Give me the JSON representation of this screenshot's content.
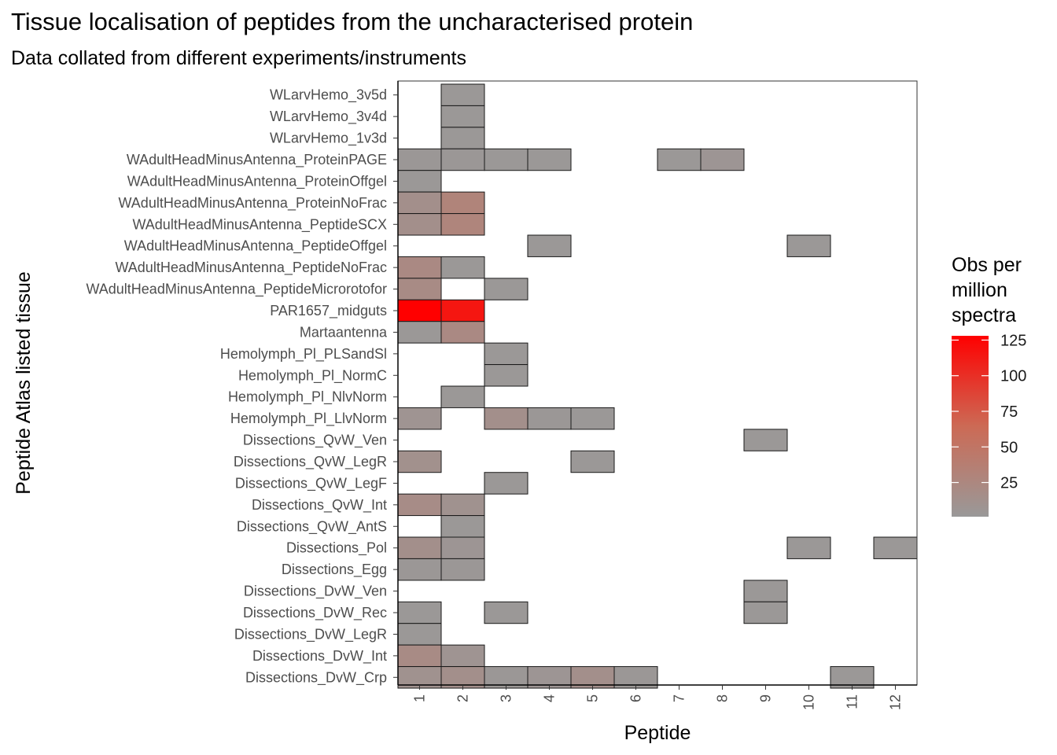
{
  "chart_data": {
    "type": "heatmap",
    "title": "Tissue localisation of peptides from the uncharacterised protein",
    "subtitle": "Data collated from different experiments/instruments",
    "xlabel": "Peptide",
    "ylabel": "Peptide Atlas listed tissue",
    "x": [
      "1",
      "2",
      "3",
      "4",
      "5",
      "6",
      "7",
      "8",
      "9",
      "10",
      "11",
      "12"
    ],
    "y": [
      "WLarvHemo_3v5d",
      "WLarvHemo_3v4d",
      "WLarvHemo_1v3d",
      "WAdultHeadMinusAntenna_ProteinPAGE",
      "WAdultHeadMinusAntenna_ProteinOffgel",
      "WAdultHeadMinusAntenna_ProteinNoFrac",
      "WAdultHeadMinusAntenna_PeptideSCX",
      "WAdultHeadMinusAntenna_PeptideOffgel",
      "WAdultHeadMinusAntenna_PeptideNoFrac",
      "WAdultHeadMinusAntenna_PeptideMicrorotofor",
      "PAR1657_midguts",
      "Martaantenna",
      "Hemolymph_Pl_PLSandSl",
      "Hemolymph_Pl_NormC",
      "Hemolymph_Pl_NlvNorm",
      "Hemolymph_Pl_LlvNorm",
      "Dissections_QvW_Ven",
      "Dissections_QvW_LegR",
      "Dissections_QvW_LegF",
      "Dissections_QvW_Int",
      "Dissections_QvW_AntS",
      "Dissections_Pol",
      "Dissections_Egg",
      "Dissections_DvW_Ven",
      "Dissections_DvW_Rec",
      "Dissections_DvW_LegR",
      "Dissections_DvW_Int",
      "Dissections_DvW_Crp"
    ],
    "cells": [
      {
        "y": "WLarvHemo_3v5d",
        "x": "2",
        "value": 3
      },
      {
        "y": "WLarvHemo_3v4d",
        "x": "2",
        "value": 3
      },
      {
        "y": "WLarvHemo_1v3d",
        "x": "2",
        "value": 3
      },
      {
        "y": "WAdultHeadMinusAntenna_ProteinPAGE",
        "x": "1",
        "value": 4
      },
      {
        "y": "WAdultHeadMinusAntenna_ProteinPAGE",
        "x": "2",
        "value": 4
      },
      {
        "y": "WAdultHeadMinusAntenna_ProteinPAGE",
        "x": "3",
        "value": 3
      },
      {
        "y": "WAdultHeadMinusAntenna_ProteinPAGE",
        "x": "4",
        "value": 3
      },
      {
        "y": "WAdultHeadMinusAntenna_ProteinPAGE",
        "x": "7",
        "value": 3
      },
      {
        "y": "WAdultHeadMinusAntenna_ProteinPAGE",
        "x": "8",
        "value": 6
      },
      {
        "y": "WAdultHeadMinusAntenna_ProteinOffgel",
        "x": "1",
        "value": 3
      },
      {
        "y": "WAdultHeadMinusAntenna_ProteinNoFrac",
        "x": "1",
        "value": 14
      },
      {
        "y": "WAdultHeadMinusAntenna_ProteinNoFrac",
        "x": "2",
        "value": 30
      },
      {
        "y": "WAdultHeadMinusAntenna_PeptideSCX",
        "x": "1",
        "value": 14
      },
      {
        "y": "WAdultHeadMinusAntenna_PeptideSCX",
        "x": "2",
        "value": 28
      },
      {
        "y": "WAdultHeadMinusAntenna_PeptideOffgel",
        "x": "4",
        "value": 3
      },
      {
        "y": "WAdultHeadMinusAntenna_PeptideOffgel",
        "x": "10",
        "value": 3
      },
      {
        "y": "WAdultHeadMinusAntenna_PeptideNoFrac",
        "x": "1",
        "value": 22
      },
      {
        "y": "WAdultHeadMinusAntenna_PeptideNoFrac",
        "x": "2",
        "value": 3
      },
      {
        "y": "WAdultHeadMinusAntenna_PeptideMicrorotofor",
        "x": "1",
        "value": 20
      },
      {
        "y": "WAdultHeadMinusAntenna_PeptideMicrorotofor",
        "x": "3",
        "value": 3
      },
      {
        "y": "PAR1657_midguts",
        "x": "1",
        "value": 128
      },
      {
        "y": "PAR1657_midguts",
        "x": "2",
        "value": 115
      },
      {
        "y": "Martaantenna",
        "x": "1",
        "value": 3
      },
      {
        "y": "Martaantenna",
        "x": "2",
        "value": 22
      },
      {
        "y": "Hemolymph_Pl_PLSandSl",
        "x": "3",
        "value": 3
      },
      {
        "y": "Hemolymph_Pl_NormC",
        "x": "3",
        "value": 3
      },
      {
        "y": "Hemolymph_Pl_NlvNorm",
        "x": "2",
        "value": 3
      },
      {
        "y": "Hemolymph_Pl_LlvNorm",
        "x": "1",
        "value": 8
      },
      {
        "y": "Hemolymph_Pl_LlvNorm",
        "x": "3",
        "value": 14
      },
      {
        "y": "Hemolymph_Pl_LlvNorm",
        "x": "4",
        "value": 4
      },
      {
        "y": "Hemolymph_Pl_LlvNorm",
        "x": "5",
        "value": 3
      },
      {
        "y": "Dissections_QvW_Ven",
        "x": "9",
        "value": 3
      },
      {
        "y": "Dissections_QvW_LegR",
        "x": "1",
        "value": 12
      },
      {
        "y": "Dissections_QvW_LegR",
        "x": "5",
        "value": 3
      },
      {
        "y": "Dissections_QvW_LegF",
        "x": "3",
        "value": 3
      },
      {
        "y": "Dissections_QvW_Int",
        "x": "1",
        "value": 18
      },
      {
        "y": "Dissections_QvW_Int",
        "x": "2",
        "value": 10
      },
      {
        "y": "Dissections_QvW_AntS",
        "x": "2",
        "value": 3
      },
      {
        "y": "Dissections_Pol",
        "x": "1",
        "value": 14
      },
      {
        "y": "Dissections_Pol",
        "x": "2",
        "value": 6
      },
      {
        "y": "Dissections_Pol",
        "x": "10",
        "value": 3
      },
      {
        "y": "Dissections_Pol",
        "x": "12",
        "value": 3
      },
      {
        "y": "Dissections_Egg",
        "x": "1",
        "value": 4
      },
      {
        "y": "Dissections_Egg",
        "x": "2",
        "value": 4
      },
      {
        "y": "Dissections_DvW_Ven",
        "x": "9",
        "value": 3
      },
      {
        "y": "Dissections_DvW_Rec",
        "x": "1",
        "value": 3
      },
      {
        "y": "Dissections_DvW_Rec",
        "x": "3",
        "value": 3
      },
      {
        "y": "Dissections_DvW_Rec",
        "x": "9",
        "value": 3
      },
      {
        "y": "Dissections_DvW_LegR",
        "x": "1",
        "value": 3
      },
      {
        "y": "Dissections_DvW_Int",
        "x": "1",
        "value": 20
      },
      {
        "y": "Dissections_DvW_Int",
        "x": "2",
        "value": 8
      },
      {
        "y": "Dissections_DvW_Crp",
        "x": "1",
        "value": 10
      },
      {
        "y": "Dissections_DvW_Crp",
        "x": "2",
        "value": 14
      },
      {
        "y": "Dissections_DvW_Crp",
        "x": "3",
        "value": 4
      },
      {
        "y": "Dissections_DvW_Crp",
        "x": "4",
        "value": 6
      },
      {
        "y": "Dissections_DvW_Crp",
        "x": "5",
        "value": 14
      },
      {
        "y": "Dissections_DvW_Crp",
        "x": "6",
        "value": 4
      },
      {
        "y": "Dissections_DvW_Crp",
        "x": "11",
        "value": 3
      }
    ],
    "legend": {
      "title_lines": [
        "Obs per",
        "million",
        "spectra"
      ],
      "ticks": [
        25,
        50,
        75,
        100,
        125
      ],
      "range": [
        1,
        128
      ],
      "low_color": "#999999",
      "high_color": "#ff0000",
      "placement": "right"
    },
    "grid": false
  }
}
